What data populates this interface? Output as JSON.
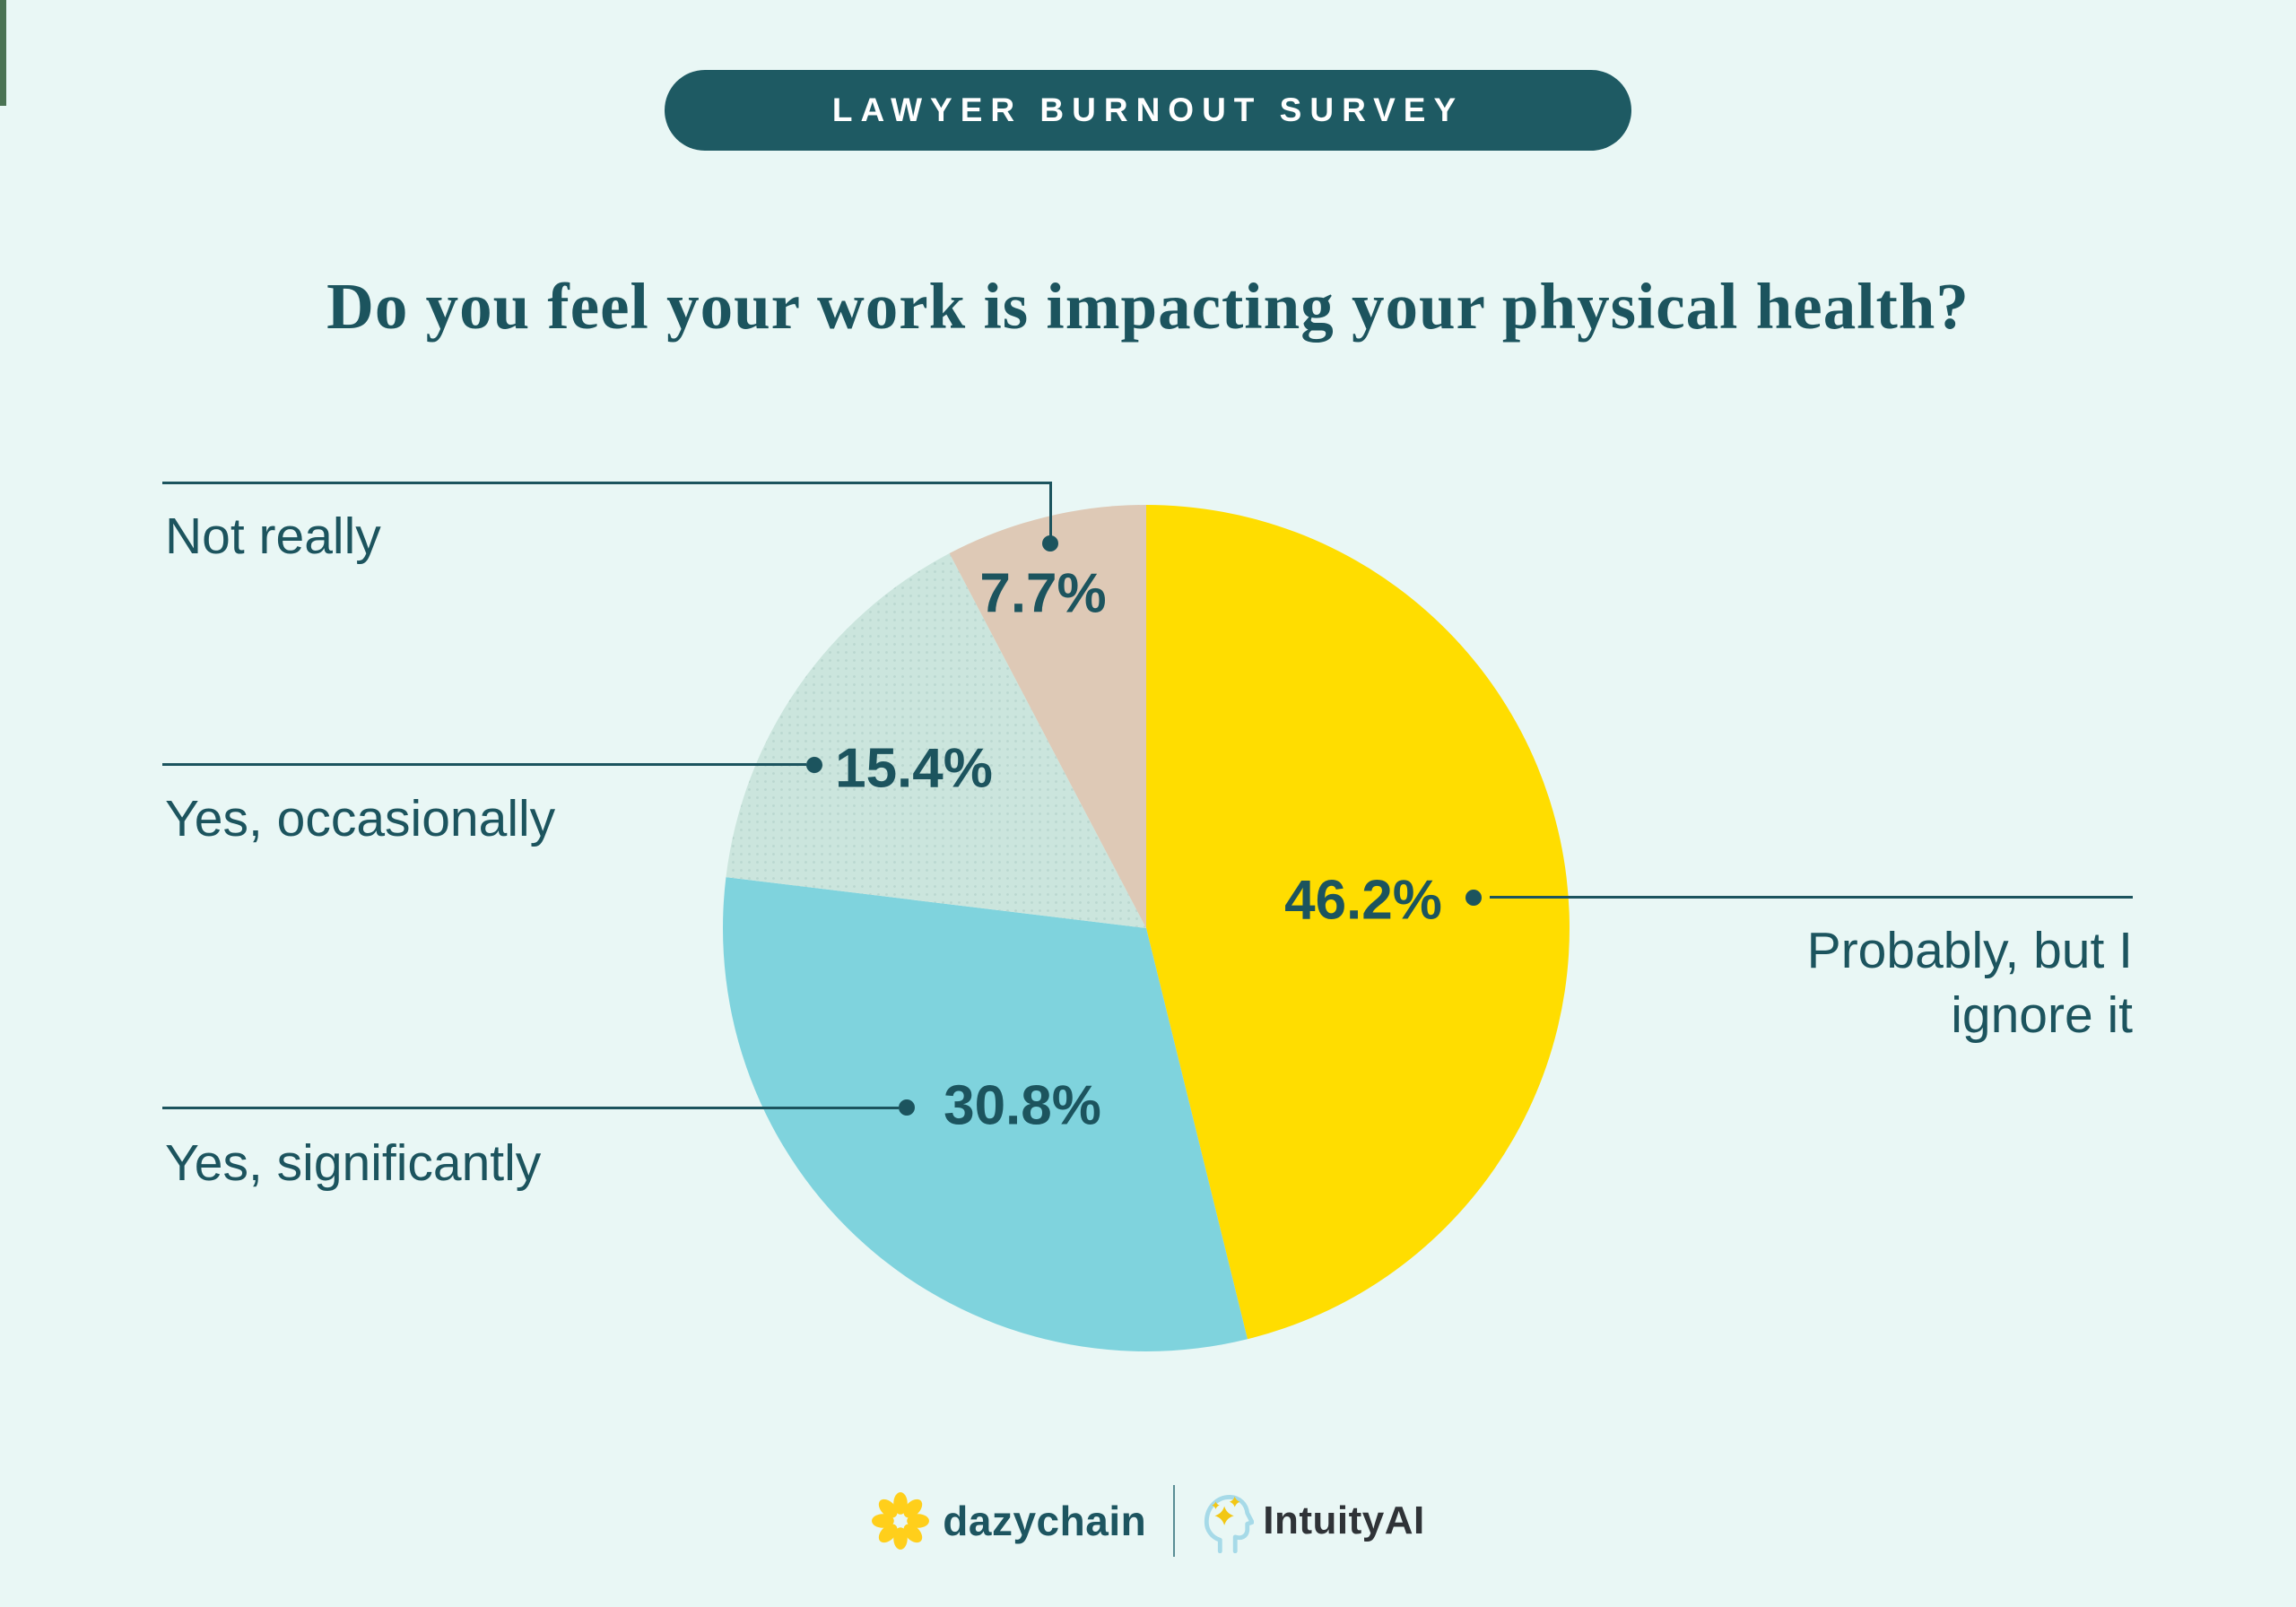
{
  "page": {
    "bg": "#E9F7F5",
    "ink": "#1C545E"
  },
  "edge_mark": {
    "color": "#4A7353"
  },
  "badge": {
    "label": "LAWYER BURNOUT SURVEY",
    "bg": "#1E5A63",
    "fg": "#FFFFFF"
  },
  "title": {
    "text": "Do you feel your work is impacting your physical health?"
  },
  "chart_data": {
    "type": "pie",
    "title": "Do you feel your work is impacting your physical health?",
    "start_angle_deg": -90,
    "direction": "clockwise",
    "legend_position": "callouts",
    "series": [
      {
        "label": "Probably, but I ignore it",
        "value": 46.2,
        "display": "46.2%",
        "color": "#FFDD00"
      },
      {
        "label": "Yes, significantly",
        "value": 30.8,
        "display": "30.8%",
        "color": "#7FD3DD"
      },
      {
        "label": "Yes, occasionally",
        "value": 15.4,
        "display": "15.4%",
        "color": "#CBE5DD",
        "texture": "dots"
      },
      {
        "label": "Not really",
        "value": 7.7,
        "display": "7.7%",
        "color": "#DEC9B6"
      }
    ]
  },
  "callouts": {
    "not_really": "Not really",
    "yes_occasionally": "Yes, occasionally",
    "yes_significantly": "Yes, significantly",
    "probably_line1": "Probably, but I",
    "probably_line2": "ignore it"
  },
  "footer": {
    "dazychain_label": "dazychain",
    "intuity_label": "IntuityAI",
    "daisy_color": "#FFCF1B",
    "head_color": "#A6DAE8",
    "sparkle_color": "#F2C714"
  }
}
